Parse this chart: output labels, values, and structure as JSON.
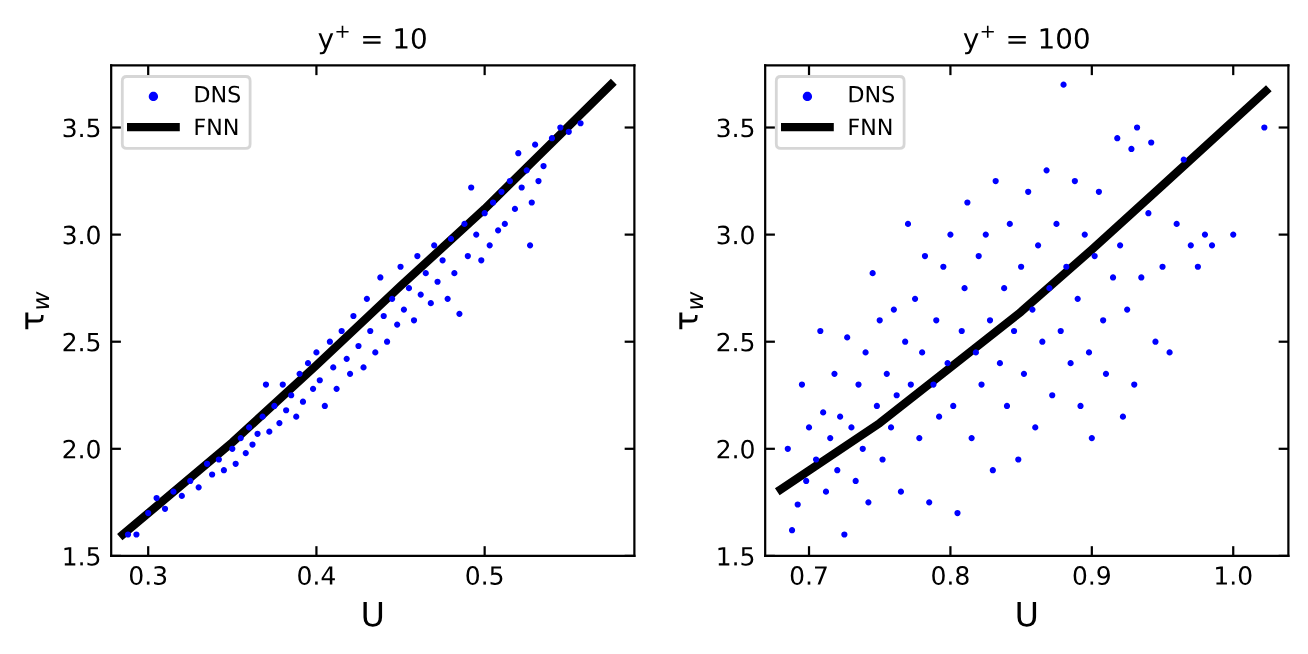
{
  "chart_data": [
    {
      "type": "scatter",
      "title": "y$^{+}$ = 10",
      "xlabel": "U",
      "ylabel": "τ$_{w}$",
      "xlim": [
        0.278,
        0.589
      ],
      "ylim": [
        1.5,
        3.79
      ],
      "xticks": [
        {
          "value": 0.3,
          "label": "0.3"
        },
        {
          "value": 0.4,
          "label": "0.4"
        },
        {
          "value": 0.5,
          "label": "0.5"
        }
      ],
      "yticks": [
        {
          "value": 1.5,
          "label": "1.5"
        },
        {
          "value": 2,
          "label": "2.0"
        },
        {
          "value": 2.5,
          "label": "2.5"
        },
        {
          "value": 3,
          "label": "3.0"
        },
        {
          "value": 3.5,
          "label": "3.5"
        }
      ],
      "legend": "top left",
      "grid": false,
      "marker": "circle",
      "series": [
        {
          "name": "DNS",
          "color": "#0000ff",
          "x": [
            0.288,
            0.293,
            0.3,
            0.305,
            0.31,
            0.315,
            0.32,
            0.325,
            0.33,
            0.335,
            0.338,
            0.342,
            0.345,
            0.35,
            0.352,
            0.355,
            0.358,
            0.36,
            0.362,
            0.365,
            0.368,
            0.37,
            0.372,
            0.375,
            0.378,
            0.38,
            0.382,
            0.385,
            0.388,
            0.39,
            0.392,
            0.395,
            0.398,
            0.4,
            0.402,
            0.405,
            0.408,
            0.41,
            0.412,
            0.415,
            0.418,
            0.42,
            0.422,
            0.425,
            0.428,
            0.43,
            0.432,
            0.435,
            0.438,
            0.44,
            0.442,
            0.445,
            0.448,
            0.45,
            0.452,
            0.455,
            0.458,
            0.46,
            0.462,
            0.465,
            0.468,
            0.47,
            0.472,
            0.475,
            0.478,
            0.48,
            0.482,
            0.485,
            0.488,
            0.49,
            0.492,
            0.495,
            0.498,
            0.5,
            0.503,
            0.505,
            0.508,
            0.51,
            0.512,
            0.515,
            0.518,
            0.52,
            0.522,
            0.525,
            0.527,
            0.528,
            0.53,
            0.532,
            0.535,
            0.54,
            0.545,
            0.55,
            0.557
          ],
          "values": [
            1.6,
            1.6,
            1.7,
            1.77,
            1.72,
            1.8,
            1.78,
            1.85,
            1.82,
            1.93,
            1.88,
            1.95,
            1.9,
            2.0,
            1.93,
            2.05,
            1.98,
            2.1,
            2.02,
            2.07,
            2.15,
            2.3,
            2.08,
            2.2,
            2.12,
            2.3,
            2.18,
            2.25,
            2.15,
            2.35,
            2.22,
            2.4,
            2.28,
            2.45,
            2.32,
            2.2,
            2.5,
            2.38,
            2.28,
            2.55,
            2.42,
            2.35,
            2.62,
            2.48,
            2.38,
            2.7,
            2.55,
            2.45,
            2.8,
            2.62,
            2.5,
            2.7,
            2.58,
            2.85,
            2.65,
            2.75,
            2.6,
            2.9,
            2.72,
            2.82,
            2.68,
            2.95,
            2.78,
            2.88,
            2.7,
            2.98,
            2.82,
            2.63,
            3.05,
            2.9,
            3.22,
            3.0,
            2.88,
            3.1,
            2.95,
            3.15,
            3.02,
            3.2,
            3.05,
            3.25,
            3.12,
            3.38,
            3.22,
            3.3,
            2.95,
            3.15,
            3.42,
            3.25,
            3.32,
            3.45,
            3.5,
            3.48,
            3.52
          ]
        },
        {
          "name": "FNN",
          "type": "line",
          "color": "#000000",
          "marker": "none",
          "line_style": "solid",
          "x": [
            0.285,
            0.35,
            0.4,
            0.45,
            0.5,
            0.575
          ],
          "values": [
            1.6,
            2.03,
            2.39,
            2.76,
            3.12,
            3.7
          ]
        }
      ]
    },
    {
      "type": "scatter",
      "title": "y$^{+}$ = 100",
      "xlabel": "U",
      "ylabel": "τ$_{w}$",
      "xlim": [
        0.669,
        1.039
      ],
      "ylim": [
        1.5,
        3.79
      ],
      "xticks": [
        {
          "value": 0.7,
          "label": "0.7"
        },
        {
          "value": 0.8,
          "label": "0.8"
        },
        {
          "value": 0.9,
          "label": "0.9"
        },
        {
          "value": 1,
          "label": "1.0"
        }
      ],
      "yticks": [
        {
          "value": 1.5,
          "label": "1.5"
        },
        {
          "value": 2,
          "label": "2.0"
        },
        {
          "value": 2.5,
          "label": "2.5"
        },
        {
          "value": 3,
          "label": "3.0"
        },
        {
          "value": 3.5,
          "label": "3.5"
        }
      ],
      "legend": "top left",
      "grid": false,
      "marker": "circle",
      "series": [
        {
          "name": "DNS",
          "color": "#0000ff",
          "x": [
            0.685,
            0.688,
            0.692,
            0.695,
            0.698,
            0.7,
            0.705,
            0.708,
            0.71,
            0.712,
            0.715,
            0.718,
            0.72,
            0.722,
            0.725,
            0.727,
            0.73,
            0.733,
            0.735,
            0.738,
            0.74,
            0.742,
            0.745,
            0.748,
            0.75,
            0.752,
            0.755,
            0.758,
            0.76,
            0.762,
            0.765,
            0.768,
            0.77,
            0.772,
            0.775,
            0.778,
            0.78,
            0.782,
            0.785,
            0.788,
            0.79,
            0.792,
            0.795,
            0.798,
            0.8,
            0.802,
            0.805,
            0.808,
            0.81,
            0.812,
            0.815,
            0.818,
            0.82,
            0.822,
            0.825,
            0.828,
            0.83,
            0.832,
            0.835,
            0.838,
            0.84,
            0.842,
            0.845,
            0.848,
            0.85,
            0.852,
            0.855,
            0.858,
            0.86,
            0.862,
            0.865,
            0.868,
            0.87,
            0.872,
            0.875,
            0.878,
            0.88,
            0.882,
            0.885,
            0.888,
            0.89,
            0.892,
            0.895,
            0.898,
            0.9,
            0.902,
            0.905,
            0.908,
            0.91,
            0.915,
            0.918,
            0.92,
            0.922,
            0.925,
            0.928,
            0.93,
            0.932,
            0.935,
            0.94,
            0.942,
            0.945,
            0.95,
            0.955,
            0.96,
            0.965,
            0.97,
            0.975,
            0.98,
            0.985,
            1.0,
            1.022
          ],
          "values": [
            2.0,
            1.62,
            1.74,
            2.3,
            1.85,
            2.1,
            1.95,
            2.55,
            2.17,
            1.8,
            2.05,
            2.35,
            1.9,
            2.15,
            1.6,
            2.52,
            2.1,
            1.85,
            2.3,
            2.0,
            2.45,
            1.75,
            2.82,
            2.2,
            2.6,
            1.95,
            2.35,
            2.1,
            2.65,
            2.25,
            1.8,
            2.5,
            3.05,
            2.3,
            2.7,
            2.05,
            2.45,
            2.9,
            1.75,
            2.3,
            2.6,
            2.15,
            2.85,
            2.4,
            3.0,
            2.2,
            1.7,
            2.55,
            2.75,
            3.15,
            2.05,
            2.45,
            2.9,
            2.3,
            3.0,
            2.6,
            1.9,
            3.25,
            2.4,
            2.75,
            2.2,
            3.05,
            2.55,
            1.95,
            2.85,
            2.35,
            3.2,
            2.65,
            2.1,
            2.95,
            2.5,
            3.3,
            2.75,
            2.25,
            3.05,
            2.55,
            3.7,
            2.85,
            2.4,
            3.25,
            2.7,
            2.2,
            3.0,
            2.45,
            2.05,
            2.9,
            3.2,
            2.6,
            2.35,
            2.8,
            3.45,
            2.95,
            2.15,
            2.65,
            3.4,
            2.3,
            3.5,
            2.8,
            3.1,
            3.43,
            2.5,
            2.85,
            2.45,
            3.05,
            3.35,
            2.95,
            2.85,
            3.0,
            2.95,
            3.0,
            3.5
          ]
        },
        {
          "name": "FNN",
          "type": "line",
          "color": "#000000",
          "marker": "none",
          "line_style": "solid",
          "x": [
            0.68,
            0.75,
            0.8,
            0.85,
            0.9,
            0.95,
            1.023
          ],
          "values": [
            1.81,
            2.12,
            2.38,
            2.64,
            2.93,
            3.23,
            3.67
          ]
        }
      ]
    }
  ]
}
